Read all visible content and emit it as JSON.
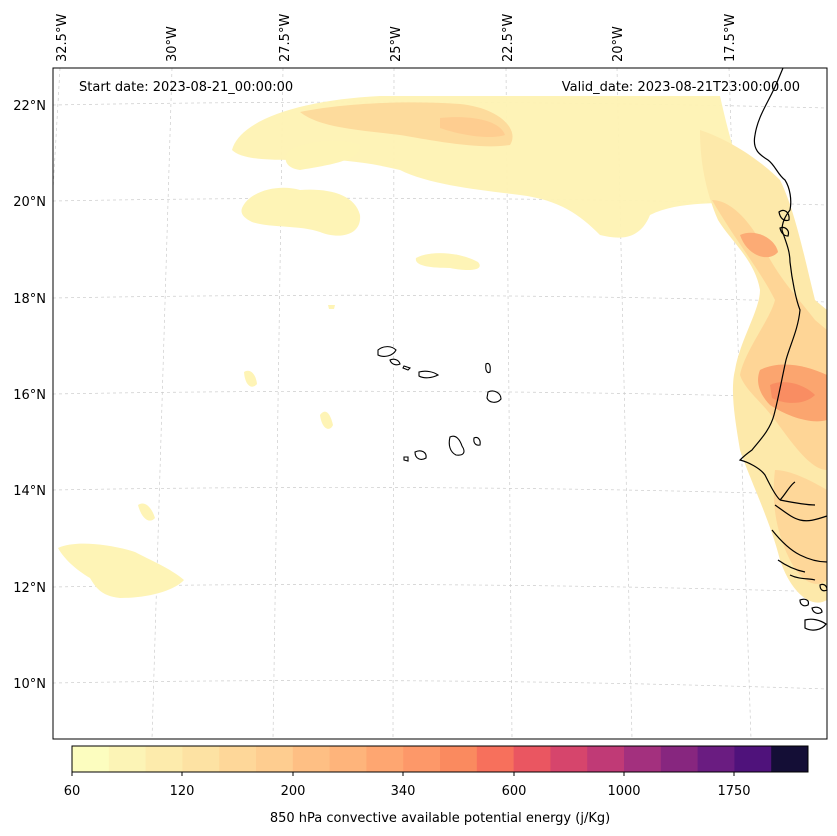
{
  "header": {
    "start_date": "Start date: 2023-08-21_00:00:00",
    "valid_date": "Valid_date: 2023-08-21T23:00:00.00"
  },
  "map": {
    "lon_labels": [
      "32.5°W",
      "30°W",
      "27.5°W",
      "25°W",
      "22.5°W",
      "20°W",
      "17.5°W"
    ],
    "lat_labels": [
      "22°N",
      "20°N",
      "18°N",
      "16°N",
      "14°N",
      "12°N",
      "10°N"
    ],
    "field": "850 hPa convective available potential energy",
    "region": "Cabo Verde and West African coast (Senegal, Gambia, Guinea-Bissau)"
  },
  "colorbar": {
    "label": "850 hPa convective available potential energy (j/Kg)",
    "tick_labels": [
      "60",
      "120",
      "200",
      "340",
      "600",
      "1000",
      "1750"
    ],
    "colors": [
      "#fcfdbf",
      "#fcf4b6",
      "#fdebac",
      "#fde2a3",
      "#fed799",
      "#fecd90",
      "#febf84",
      "#feb47b",
      "#fea671",
      "#fd9869",
      "#fa8a5f",
      "#f7705c",
      "#ea5661",
      "#d6456c",
      "#c03a76",
      "#a3307e",
      "#87267f",
      "#6a1c81",
      "#4f127b",
      "#140e36"
    ],
    "colormap": "magma_r"
  }
}
